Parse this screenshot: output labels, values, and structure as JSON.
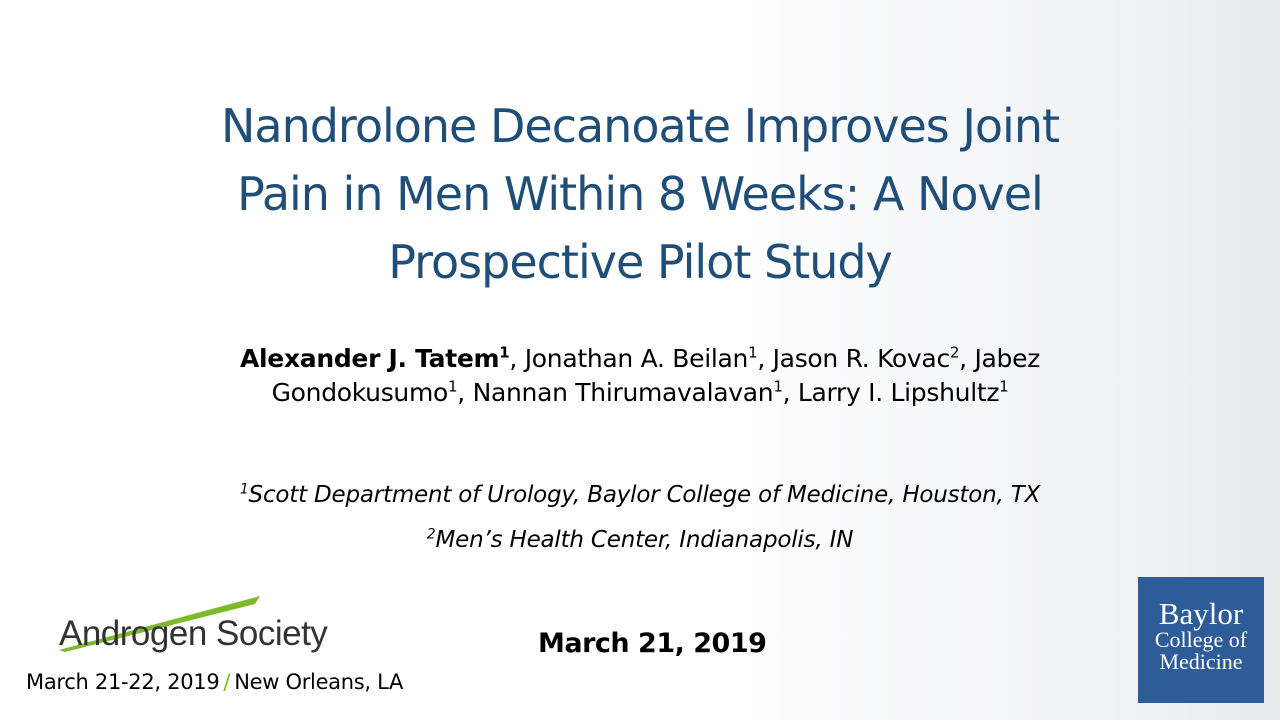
{
  "slide": {
    "title_lines": [
      "Nandrolone Decanoate Improves Joint",
      "Pain in Men Within 8 Weeks: A Novel",
      "Prospective Pilot Study"
    ],
    "authors": [
      {
        "name": "Alexander J. Tatem",
        "sup": "1",
        "bold": true,
        "sep": ", "
      },
      {
        "name": "Jonathan A. Beilan",
        "sup": "1",
        "sep": ", "
      },
      {
        "name": "Jason R. Kovac",
        "sup": "2",
        "sep": ", "
      },
      {
        "name": "Jabez Gondokusumo",
        "sup": "1",
        "sep": ", "
      },
      {
        "name": "Nannan Thirumavalavan",
        "sup": "1",
        "sep": ", "
      },
      {
        "name": "Larry I. Lipshultz",
        "sup": "1",
        "sep": ""
      }
    ],
    "affiliations": [
      {
        "sup": "1",
        "text": "Scott Department of Urology, Baylor College of Medicine, Houston, TX"
      },
      {
        "sup": "2",
        "text": "Men’s Health Center, Indianapolis, IN"
      }
    ],
    "presentation_date": "March 21, 2019"
  },
  "conference": {
    "logo_text": "Androgen Society",
    "dates": "March 21-22, 2019",
    "separator": "/",
    "location": "New Orleans, LA"
  },
  "institution_logo": {
    "line1": "Baylor",
    "line2": "College of",
    "line3": "Medicine"
  },
  "colors": {
    "title": "#1f4e79",
    "baylor_blue": "#2e5c98",
    "accent_green": "#7dbb2c"
  }
}
